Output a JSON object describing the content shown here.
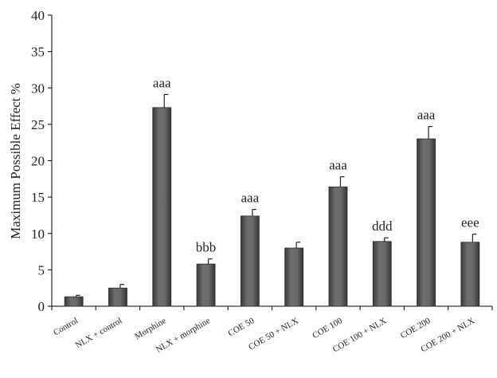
{
  "chart_data": {
    "type": "bar",
    "ylabel": "Maximum Possible Effect %",
    "xlabel": "",
    "ylim": [
      0,
      40
    ],
    "yticks": [
      0,
      5,
      10,
      15,
      20,
      25,
      30,
      35,
      40
    ],
    "grid": false,
    "bar_color": "#5b5b5b",
    "categories": [
      "Control",
      "NLX + control",
      "Morphine",
      "NLX + morphine",
      "COE 50",
      "COE 50 + NLX",
      "COE 100",
      "COE 100 + NLX",
      "COE 200",
      "COE 200 + NLX"
    ],
    "values": [
      1.3,
      2.5,
      27.3,
      5.8,
      12.4,
      8.0,
      16.4,
      8.9,
      23.0,
      8.8
    ],
    "errors": [
      0.2,
      0.5,
      1.8,
      0.7,
      0.9,
      0.8,
      1.4,
      0.5,
      1.7,
      1.1
    ],
    "annotations": [
      "",
      "",
      "aaa",
      "bbb",
      "aaa",
      "",
      "aaa",
      "ddd",
      "aaa",
      "eee"
    ]
  }
}
